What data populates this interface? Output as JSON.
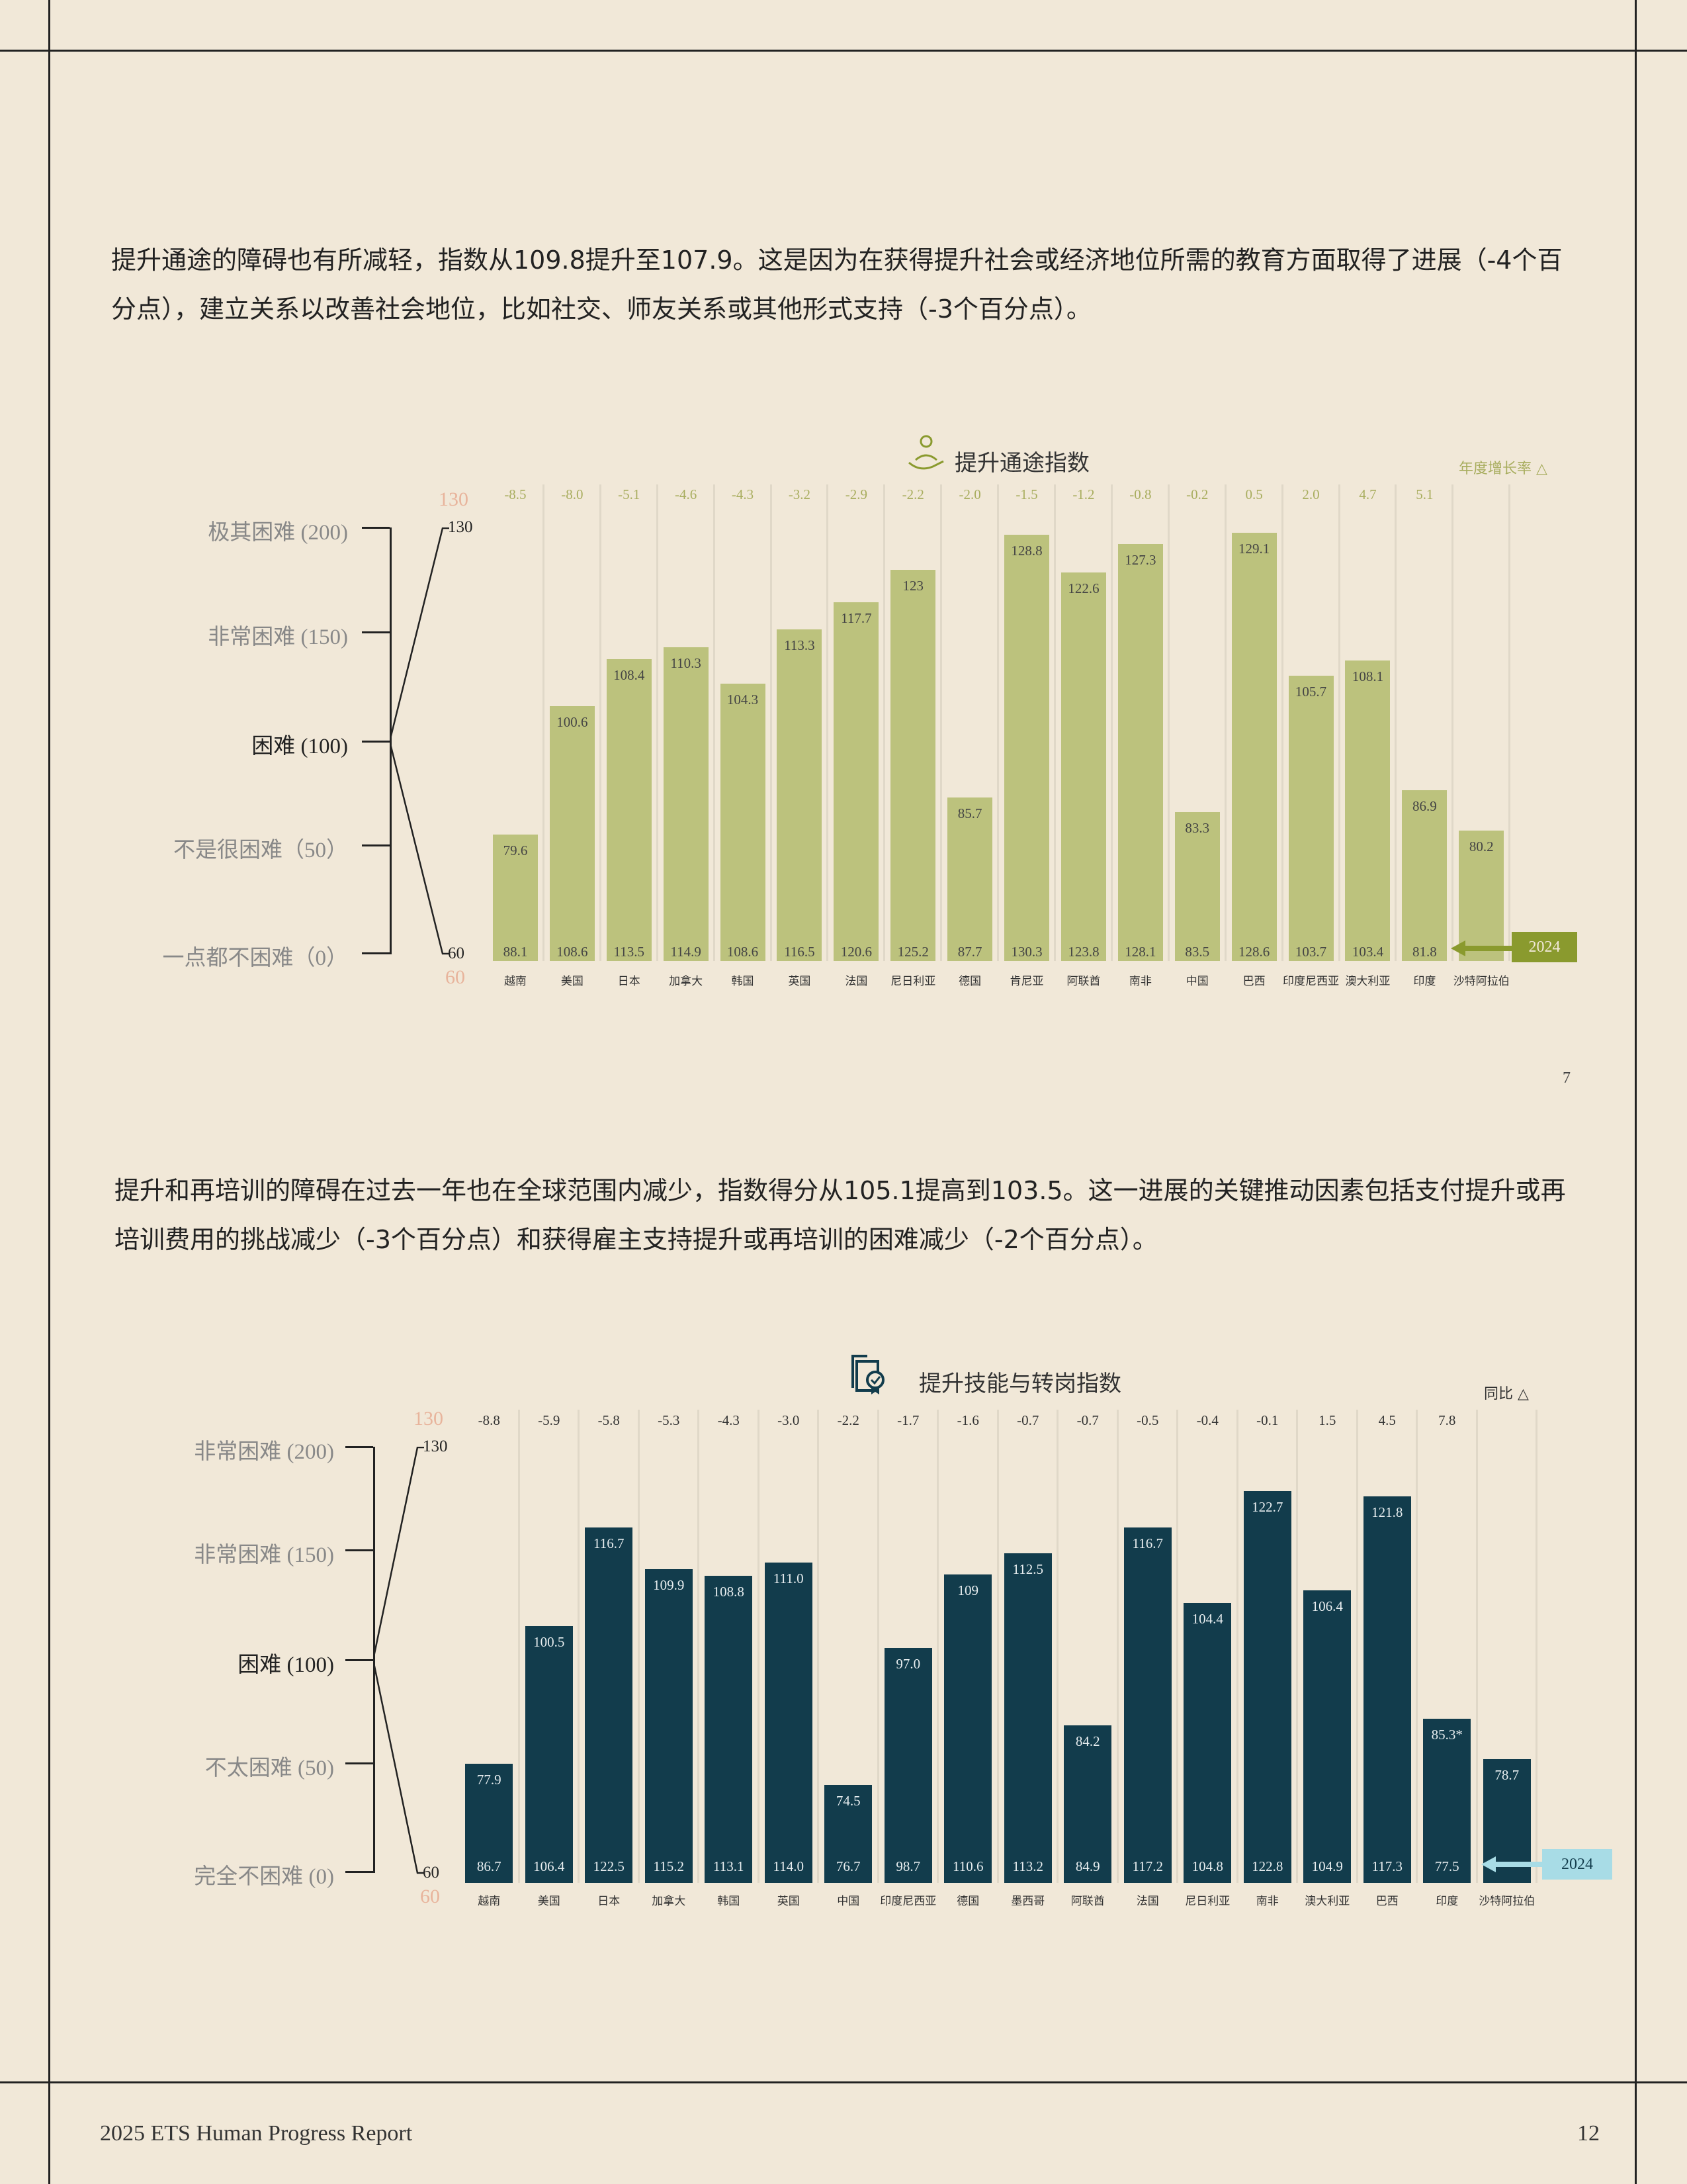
{
  "paragraphs": [
    "提升通途的障碍也有所减轻，指数从109.8提升至107.9。这是因为在获得提升社会或经济地位所需的教育方面取得了进展（-4个百分点），建立关系以改善社会地位，比如社交、师友关系或其他形式支持（-3个百分点）。",
    "提升和再培训的障碍在过去一年也在全球范围内减少，指数得分从105.1提高到103.5。这一进展的关键推动因素包括支付提升或再培训费用的挑战减少（-3个百分点）和获得雇主支持提升或再培训的困难减少（-2个百分点）。"
  ],
  "page_marker": "7",
  "footer": {
    "title": "2025 ETS Human Progress Report",
    "page": "12"
  },
  "chart_data": [
    {
      "type": "bar",
      "title": "提升通途指数",
      "icon": "person-rising-hand-icon",
      "change_header": "年度增长率 △",
      "scale_labels": [
        "极其困难 (200)",
        "非常困难 (150)",
        "困难 (100)",
        "不是很困难（50）",
        "一点都不困难（0）"
      ],
      "axis_ticks": {
        "top": "130",
        "bottom": "60",
        "top_faint": "130",
        "bottom_faint": "60"
      },
      "ylim": [
        60,
        130
      ],
      "categories": [
        "越南",
        "美国",
        "日本",
        "加拿大",
        "韩国",
        "英国",
        "法国",
        "尼日利亚",
        "德国",
        "肯尼亚",
        "阿联酋",
        "南非",
        "中国",
        "巴西",
        "印度尼西亚",
        "澳大利亚",
        "印度",
        "沙特阿拉伯"
      ],
      "values_2025": [
        79.6,
        100.6,
        108.4,
        110.3,
        104.3,
        113.3,
        117.7,
        123.0,
        85.7,
        128.8,
        122.6,
        127.3,
        83.3,
        129.1,
        105.7,
        108.1,
        86.9,
        80.2
      ],
      "values_2024": [
        "88.1",
        "108.6",
        "113.5",
        "114.9",
        "108.6",
        "116.5",
        "120.6",
        "125.2",
        "87.7",
        "130.3",
        "123.8",
        "128.1",
        "83.5",
        "128.6",
        "103.7",
        "103.4",
        "81.8",
        ""
      ],
      "changes": [
        "-8.5",
        "-8.0",
        "-5.1",
        "-4.6",
        "-4.3",
        "-3.2",
        "-2.9",
        "-2.2",
        "-2.0",
        "-1.5",
        "-1.2",
        "-0.8",
        "-0.2",
        "0.5",
        "2.0",
        "4.7",
        "5.1",
        ""
      ],
      "legend_2024": "2024",
      "colors": {
        "bar": "#bcc27d",
        "change": "#a8ad5e",
        "box": "#8a9a2e",
        "box_text": "#f1e8d8",
        "value": "#444444"
      }
    },
    {
      "type": "bar",
      "title": "提升技能与转岗指数",
      "icon": "certificate-check-icon",
      "change_header": "同比 △",
      "scale_labels": [
        "非常困难 (200)",
        "非常困难 (150)",
        "困难 (100)",
        "不太困难 (50)",
        "完全不困难 (0)"
      ],
      "axis_ticks": {
        "top": "130",
        "bottom": "60",
        "top_faint": "130",
        "bottom_faint": "60"
      },
      "ylim": [
        60,
        130
      ],
      "categories": [
        "越南",
        "美国",
        "日本",
        "加拿大",
        "韩国",
        "英国",
        "中国",
        "印度尼西亚",
        "德国",
        "墨西哥",
        "阿联酋",
        "法国",
        "尼日利亚",
        "南非",
        "澳大利亚",
        "巴西",
        "印度",
        "沙特阿拉伯"
      ],
      "values_2025": [
        77.9,
        100.5,
        116.7,
        109.9,
        108.8,
        111.0,
        74.5,
        97.0,
        109,
        112.5,
        84.2,
        116.7,
        104.4,
        122.7,
        106.4,
        121.8,
        85.3,
        78.7
      ],
      "value_labels_2025": [
        "77.9",
        "100.5",
        "116.7",
        "109.9",
        "108.8",
        "111.0",
        "74.5",
        "97.0",
        "109",
        "112.5",
        "84.2",
        "116.7",
        "104.4",
        "122.7",
        "106.4",
        "121.8",
        "85.3*",
        "78.7"
      ],
      "values_2024": [
        "86.7",
        "106.4",
        "122.5",
        "115.2",
        "113.1",
        "114.0",
        "76.7",
        "98.7",
        "110.6",
        "113.2",
        "84.9",
        "117.2",
        "104.8",
        "122.8",
        "104.9",
        "117.3",
        "77.5",
        ""
      ],
      "changes": [
        "-8.8",
        "-5.9",
        "-5.8",
        "-5.3",
        "-4.3",
        "-3.0",
        "-2.2",
        "-1.7",
        "-1.6",
        "-0.7",
        "-0.7",
        "-0.5",
        "-0.4",
        "-0.1",
        "1.5",
        "4.5",
        "7.8",
        ""
      ],
      "legend_2024": "2024",
      "colors": {
        "bar": "#123c4c",
        "change": "#333333",
        "box": "#a8dce6",
        "box_text": "#123c4c",
        "value": "#e8eef0"
      }
    }
  ]
}
